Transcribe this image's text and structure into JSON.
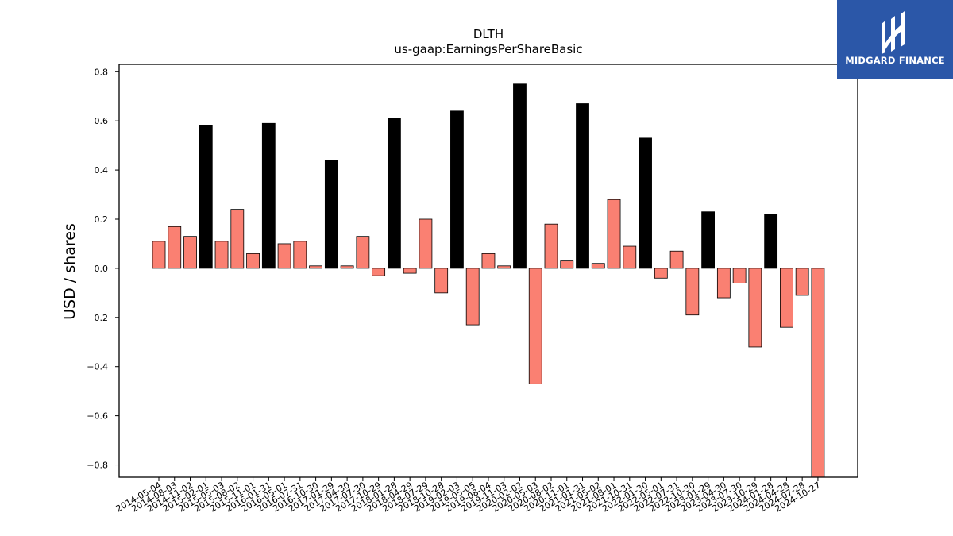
{
  "chart_data": {
    "type": "bar",
    "title": "DLTH",
    "subtitle": "us-gaap:EarningsPerShareBasic",
    "xlabel": "",
    "ylabel": "USD / shares",
    "ylim": [
      -0.85,
      0.83
    ],
    "yticks": [
      0.8,
      0.6,
      0.4,
      0.2,
      0.0,
      -0.2,
      -0.4,
      -0.6,
      -0.8
    ],
    "ytick_labels": [
      "0.8",
      "0.6",
      "0.4",
      "0.2",
      "0.0",
      "−0.2",
      "−0.4",
      "−0.6",
      "−0.8"
    ],
    "grid": false,
    "colors": {
      "quarterly": "#fa8072",
      "annual": "#000000",
      "edge": "#000000"
    },
    "categories": [
      "2014-05-04",
      "2014-08-03",
      "2014-11-02",
      "2015-02-01",
      "2015-05-03",
      "2015-08-02",
      "2015-11-01",
      "2016-01-31",
      "2016-05-01",
      "2016-07-31",
      "2016-10-30",
      "2017-01-29",
      "2017-04-30",
      "2017-07-30",
      "2017-10-29",
      "2018-01-28",
      "2018-04-29",
      "2018-07-29",
      "2018-10-28",
      "2019-02-03",
      "2019-05-05",
      "2019-08-04",
      "2019-11-03",
      "2020-02-02",
      "2020-05-03",
      "2020-08-02",
      "2020-11-01",
      "2021-01-31",
      "2021-05-02",
      "2021-08-01",
      "2021-10-31",
      "2022-01-30",
      "2022-05-01",
      "2022-07-31",
      "2022-10-30",
      "2023-01-29",
      "2023-04-30",
      "2023-07-30",
      "2023-10-29",
      "2024-01-28",
      "2024-04-28",
      "2024-07-28",
      "2024-10-27"
    ],
    "values": [
      0.11,
      0.17,
      0.13,
      0.58,
      0.11,
      0.24,
      0.06,
      0.59,
      0.1,
      0.11,
      0.01,
      0.44,
      0.01,
      0.13,
      -0.03,
      0.61,
      -0.02,
      0.2,
      -0.1,
      0.64,
      -0.23,
      0.06,
      0.01,
      0.75,
      -0.47,
      0.18,
      0.03,
      0.67,
      0.02,
      0.28,
      0.09,
      0.53,
      -0.04,
      0.07,
      -0.19,
      0.23,
      -0.12,
      -0.06,
      -0.32,
      0.22,
      -0.24,
      -0.11,
      -0.85
    ],
    "annual_flags": [
      0,
      0,
      0,
      1,
      0,
      0,
      0,
      1,
      0,
      0,
      0,
      1,
      0,
      0,
      0,
      1,
      0,
      0,
      0,
      1,
      0,
      0,
      0,
      1,
      0,
      0,
      0,
      1,
      0,
      0,
      0,
      1,
      0,
      0,
      0,
      1,
      0,
      0,
      0,
      1,
      0,
      0,
      0
    ]
  },
  "logo": {
    "text": "MIDGARD FINANCE"
  }
}
